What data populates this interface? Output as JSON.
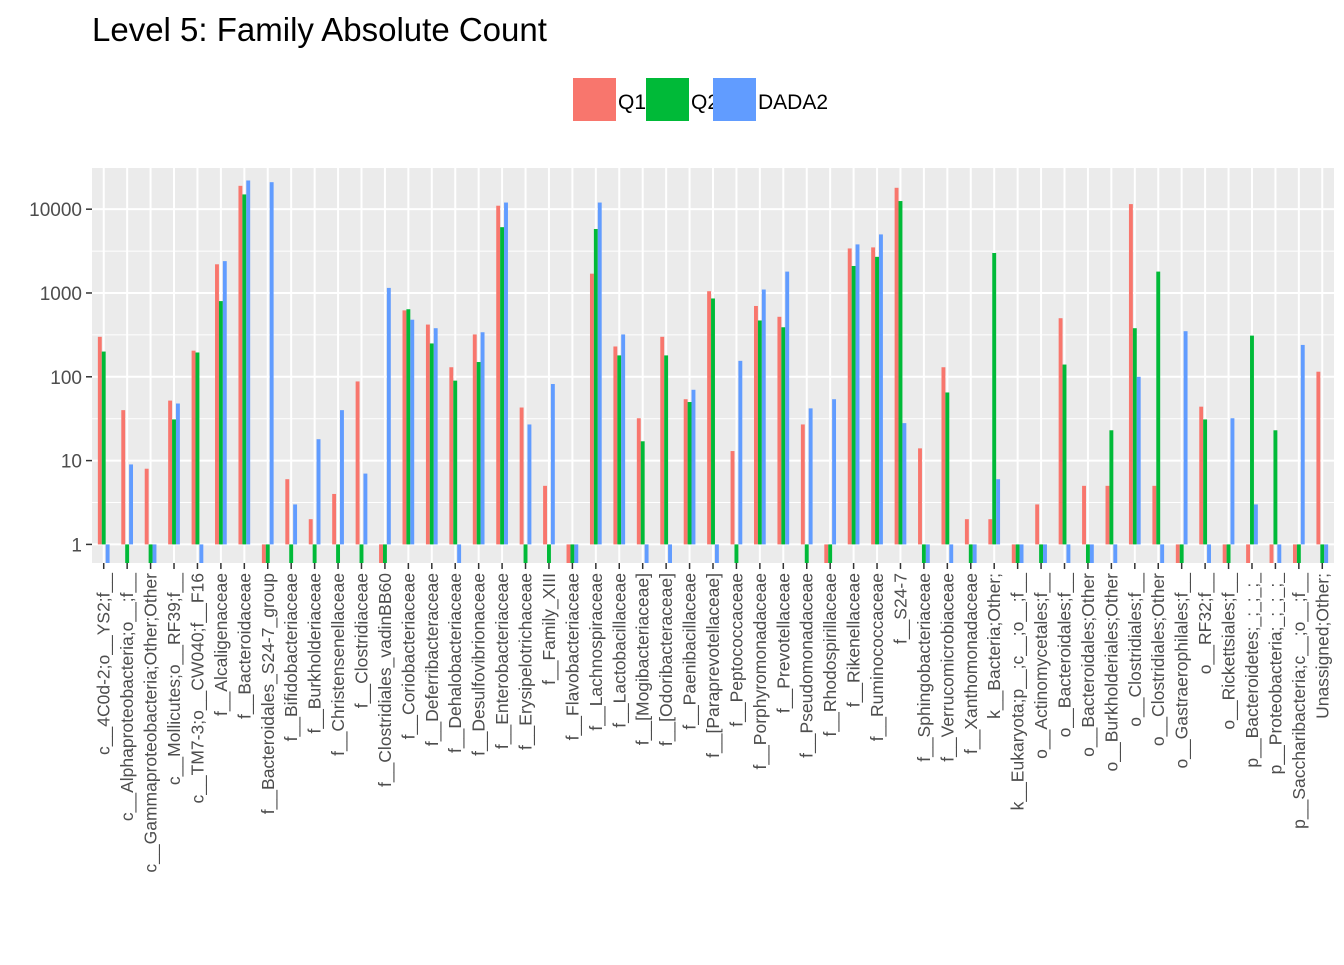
{
  "chart_data": {
    "type": "bar",
    "title": "Level 5: Family Absolute Count",
    "xlabel": "",
    "ylabel": "",
    "scale_y": "log10",
    "ylim": [
      0.6,
      31000
    ],
    "yticks": [
      1,
      10,
      100,
      1000,
      10000
    ],
    "ytick_labels": [
      "1",
      "10",
      "100",
      "1000",
      "10000"
    ],
    "grid": true,
    "legend": {
      "position": "top"
    },
    "categories": [
      "c__4C0d-2;o__YS2;f__",
      "c__Alphaproteobacteria;o__;f__",
      "c__Gammaproteobacteria;Other;Other",
      "c__Mollicutes;o__RF39;f__",
      "c__TM7-3;o__CW040;f__F16",
      "f__Alcaligenaceae",
      "f__Bacteroidaceae",
      "f__Bacteroidales_S24-7_group",
      "f__Bifidobacteriaceae",
      "f__Burkholderiaceae",
      "f__Christensenellaceae",
      "f__Clostridiaceae",
      "f__Clostridiales_vadinBB60",
      "f__Coriobacteriaceae",
      "f__Deferribacteraceae",
      "f__Dehalobacteriaceae",
      "f__Desulfovibrionaceae",
      "f__Enterobacteriaceae",
      "f__Erysipelotrichaceae",
      "f__Family_XIII",
      "f__Flavobacteriaceae",
      "f__Lachnospiraceae",
      "f__Lactobacillaceae",
      "f__[Mogibacteriaceae]",
      "f__[Odoribacteraceae]",
      "f__Paenibacillaceae",
      "f__[Paraprevotellaceae]",
      "f__Peptococcaceae",
      "f__Porphyromonadaceae",
      "f__Prevotellaceae",
      "f__Pseudomonadaceae",
      "f__Rhodospirillaceae",
      "f__Rikenellaceae",
      "f__Ruminococcaceae",
      "f__S24-7",
      "f__Sphingobacteriaceae",
      "f__Verrucomicrobiaceae",
      "f__Xanthomonadaceae",
      "k__Bacteria;Other;",
      "k__Eukaryota;p__;c__;o__;f__",
      "o__Actinomycetales;f__",
      "o__Bacteroidales;f__",
      "o__Bacteroidales;Other",
      "o__Burkholderiales;Other",
      "o__Clostridiales;f__",
      "o__Clostridiales;Other",
      "o__Gastraerophilales;f__",
      "o__RF32;f__",
      "o__Rickettsiales;f__",
      "p__Bacteroidetes;_;_;_;_",
      "p__Proteobacteria;_;_;_;_",
      "p__Saccharibacteria;c__;o__;f__",
      "Unassigned;Other;"
    ],
    "series": [
      {
        "name": "Q1",
        "color": "#F8766D",
        "values": [
          300,
          40,
          8,
          52,
          205,
          2200,
          19000,
          0.6,
          6,
          2,
          4,
          88,
          0.6,
          620,
          420,
          130,
          320,
          11000,
          43,
          5,
          0.6,
          1700,
          230,
          32,
          300,
          54,
          1050,
          13,
          700,
          520,
          27,
          0.6,
          3400,
          3500,
          18000,
          14,
          130,
          2,
          2,
          0.6,
          3,
          500,
          5,
          5,
          11500,
          5,
          0.6,
          44,
          0.6,
          0.6,
          0.6,
          0.6,
          115
        ]
      },
      {
        "name": "Q2",
        "color": "#00BA38",
        "values": [
          200,
          0.6,
          0.6,
          31,
          195,
          800,
          15000,
          0.6,
          0.6,
          0.6,
          0.6,
          0.6,
          0.6,
          640,
          250,
          90,
          150,
          6100,
          0.6,
          0.6,
          0.6,
          5800,
          180,
          17,
          180,
          50,
          860,
          0.6,
          470,
          390,
          0.6,
          0.6,
          2100,
          2700,
          12500,
          0.6,
          65,
          0.6,
          3000,
          0.6,
          0.6,
          140,
          0.6,
          23,
          380,
          1800,
          0.6,
          31,
          0.6,
          310,
          23,
          0.6,
          0.6
        ]
      },
      {
        "name": "DADA2",
        "color": "#619CFF",
        "values": [
          0.6,
          9,
          0.6,
          48,
          0.6,
          2400,
          22000,
          21000,
          3,
          18,
          40,
          7,
          1150,
          480,
          380,
          0.6,
          340,
          12000,
          27,
          82,
          0.6,
          12000,
          320,
          0.6,
          0.6,
          70,
          0.6,
          155,
          1100,
          1800,
          42,
          54,
          3800,
          5000,
          28,
          0.6,
          0.6,
          0.6,
          6,
          0.6,
          0.6,
          0.6,
          0.6,
          0.6,
          100,
          0.6,
          350,
          0.6,
          32,
          3,
          0.6,
          240,
          0.6
        ]
      }
    ]
  }
}
